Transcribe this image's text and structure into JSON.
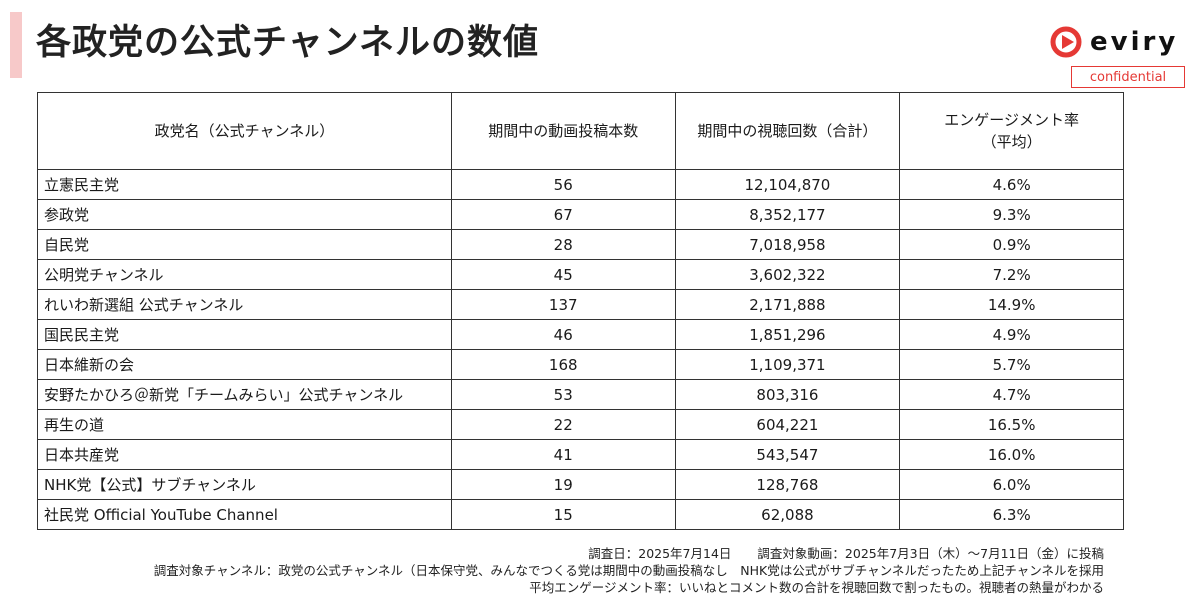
{
  "header": {
    "title": "各政党の公式チャンネルの数値",
    "logo_text": "eviry",
    "badge": "confidential"
  },
  "table": {
    "headers": [
      "政党名（公式チャンネル）",
      "期間中の動画投稿本数",
      "期間中の視聴回数（合計）",
      "エンゲージメント率\n（平均）"
    ],
    "rows": [
      {
        "name": "立憲民主党",
        "posts": "56",
        "views": "12,104,870",
        "rate": "4.6%"
      },
      {
        "name": "参政党",
        "posts": "67",
        "views": "8,352,177",
        "rate": "9.3%"
      },
      {
        "name": "自民党",
        "posts": "28",
        "views": "7,018,958",
        "rate": "0.9%"
      },
      {
        "name": "公明党チャンネル",
        "posts": "45",
        "views": "3,602,322",
        "rate": "7.2%"
      },
      {
        "name": "れいわ新選組 公式チャンネル",
        "posts": "137",
        "views": "2,171,888",
        "rate": "14.9%"
      },
      {
        "name": "国民民主党",
        "posts": "46",
        "views": "1,851,296",
        "rate": "4.9%"
      },
      {
        "name": "日本維新の会",
        "posts": "168",
        "views": "1,109,371",
        "rate": "5.7%"
      },
      {
        "name": "安野たかひろ＠新党「チームみらい」公式チャンネル",
        "posts": "53",
        "views": "803,316",
        "rate": "4.7%"
      },
      {
        "name": "再生の道",
        "posts": "22",
        "views": "604,221",
        "rate": "16.5%"
      },
      {
        "name": "日本共産党",
        "posts": "41",
        "views": "543,547",
        "rate": "16.0%"
      },
      {
        "name": "NHK党【公式】サブチャンネル",
        "posts": "19",
        "views": "128,768",
        "rate": "6.0%"
      },
      {
        "name": "社民党 Official YouTube Channel",
        "posts": "15",
        "views": "62,088",
        "rate": "6.3%"
      }
    ]
  },
  "notes": {
    "survey_date": "調査日：2025年7月14日",
    "target_videos": "調査対象動画：2025年7月3日（木）～7月11日（金）に投稿",
    "target_channels": "調査対象チャンネル：政党の公式チャンネル（日本保守党、みんなでつくる党は期間中の動画投稿なし　NHK党は公式がサブチャンネルだったため上記チャンネルを採用",
    "engagement_def": "平均エンゲージメント率：いいねとコメント数の合計を視聴回数で割ったもの。視聴者の熱量がわかる"
  },
  "colors": {
    "accent": "#f7c9c9",
    "brand_red": "#e53935",
    "border": "#333333"
  }
}
